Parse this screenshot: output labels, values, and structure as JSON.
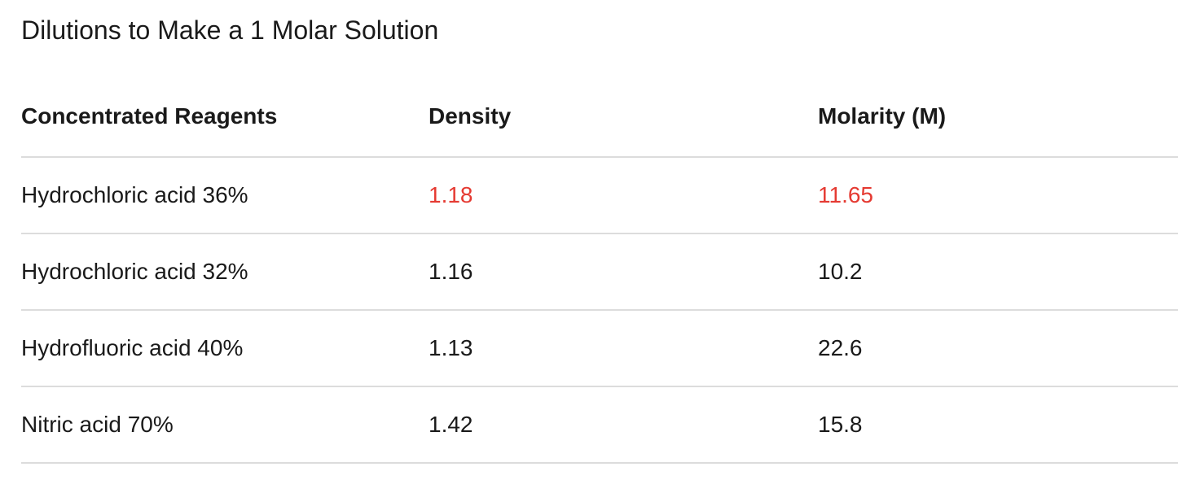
{
  "title": "Dilutions to Make a 1 Molar Solution",
  "colors": {
    "text": "#1a1a1a",
    "highlight": "#e53a32",
    "divider": "#dcdcdc"
  },
  "table": {
    "headers": [
      "Concentrated Reagents",
      "Density",
      "Molarity (M)"
    ],
    "rows": [
      {
        "reagent": "Hydrochloric acid 36%",
        "density": "1.18",
        "molarity": "11.65",
        "highlight": true
      },
      {
        "reagent": "Hydrochloric acid 32%",
        "density": "1.16",
        "molarity": "10.2",
        "highlight": false
      },
      {
        "reagent": "Hydrofluoric acid 40%",
        "density": "1.13",
        "molarity": "22.6",
        "highlight": false
      },
      {
        "reagent": "Nitric acid 70%",
        "density": "1.42",
        "molarity": "15.8",
        "highlight": false
      }
    ]
  }
}
